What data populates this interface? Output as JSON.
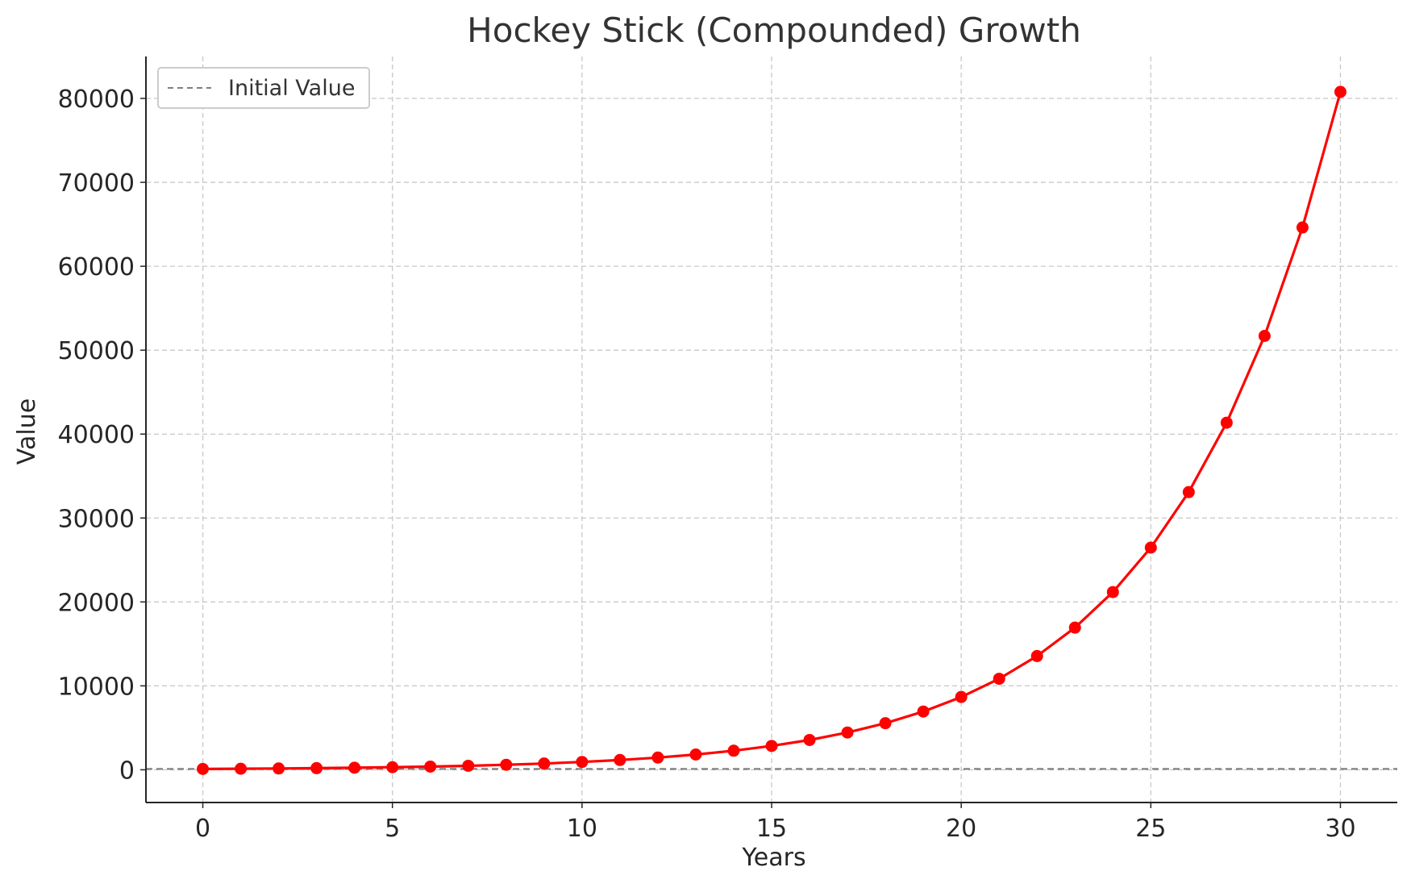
{
  "chart_data": {
    "type": "line",
    "title": "Hockey Stick (Compounded) Growth",
    "xlabel": "Years",
    "ylabel": "Value",
    "xlim": [
      -1.5,
      31.5
    ],
    "ylim": [
      -3900,
      85000
    ],
    "xticks": [
      0,
      5,
      10,
      15,
      20,
      25,
      30
    ],
    "yticks": [
      0,
      10000,
      20000,
      30000,
      40000,
      50000,
      60000,
      70000,
      80000
    ],
    "grid": true,
    "legend_position": "top-left",
    "series": [
      {
        "color": "#ff0000",
        "marker": "circle",
        "x": [
          0,
          1,
          2,
          3,
          4,
          5,
          6,
          7,
          8,
          9,
          10,
          11,
          12,
          13,
          14,
          15,
          16,
          17,
          18,
          19,
          20,
          21,
          22,
          23,
          24,
          25,
          26,
          27,
          28,
          29,
          30
        ],
        "y": [
          100,
          125,
          156,
          195,
          244,
          305,
          381,
          477,
          596,
          745,
          931,
          1164,
          1455,
          1819,
          2274,
          2842,
          3553,
          4441,
          5551,
          6939,
          8674,
          10842,
          13553,
          16941,
          21176,
          26470,
          33087,
          41359,
          51699,
          64623,
          80779
        ]
      }
    ],
    "reference_lines": [
      {
        "name": "Initial Value",
        "y": 100,
        "color": "#808080",
        "style": "dashed"
      }
    ]
  }
}
